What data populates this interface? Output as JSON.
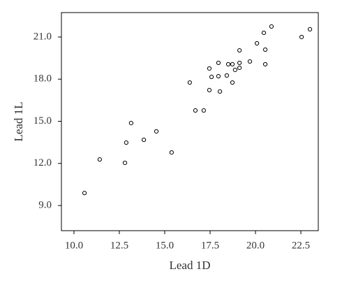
{
  "chart_data": {
    "type": "scatter",
    "x_label": "Lead 1D",
    "y_label": "Lead 1L",
    "x": [
      10.58,
      11.42,
      12.81,
      12.88,
      13.15,
      13.85,
      14.54,
      15.38,
      16.38,
      16.69,
      17.15,
      17.46,
      17.46,
      17.58,
      17.96,
      17.96,
      18.04,
      18.42,
      18.5,
      18.73,
      18.73,
      18.88,
      19.12,
      19.12,
      19.12,
      19.69,
      20.08,
      20.46,
      20.54,
      20.54,
      20.88,
      22.54,
      23.0
    ],
    "values": [
      9.89,
      12.28,
      12.04,
      13.48,
      14.87,
      13.68,
      14.28,
      12.78,
      17.76,
      15.77,
      15.77,
      18.76,
      17.22,
      18.16,
      18.21,
      19.16,
      17.12,
      18.26,
      19.06,
      19.06,
      17.76,
      18.66,
      18.81,
      19.16,
      20.05,
      19.26,
      20.55,
      21.3,
      20.1,
      19.06,
      21.75,
      21.0,
      21.55
    ],
    "color": "#000000",
    "xlim": [
      9.31,
      23.46
    ],
    "ylim": [
      7.21,
      22.74
    ],
    "xticks": [
      {
        "value": 10,
        "label": "10.0"
      },
      {
        "value": 12.5,
        "label": "12.5"
      },
      {
        "value": 15,
        "label": "15.0"
      },
      {
        "value": 17.5,
        "label": "17.5"
      },
      {
        "value": 20,
        "label": "20.0"
      },
      {
        "value": 22.5,
        "label": "22.5"
      }
    ],
    "yticks": [
      {
        "value": 9,
        "label": "9.0"
      },
      {
        "value": 12,
        "label": "12.0"
      },
      {
        "value": 15,
        "label": "15.0"
      },
      {
        "value": 18,
        "label": "18.0"
      },
      {
        "value": 21,
        "label": "21.0"
      }
    ],
    "grid": false
  }
}
